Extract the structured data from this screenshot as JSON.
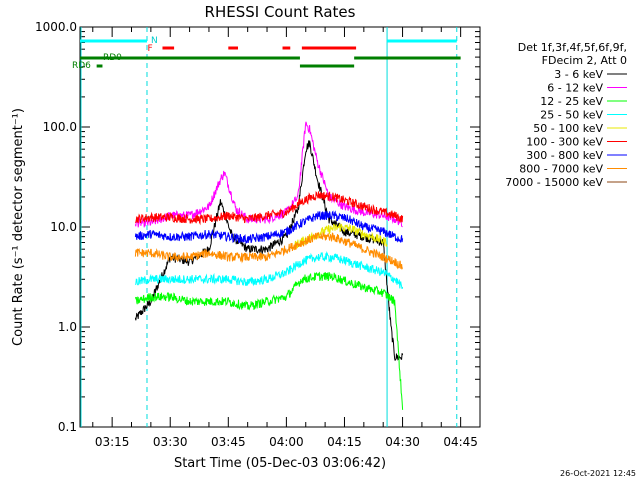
{
  "chart_data": {
    "type": "line",
    "title": "RHESSI Count Rates",
    "xlabel": "Start Time (05-Dec-03 03:06:42)",
    "ylabel": "Count Rate (s⁻¹ detector segment⁻¹)",
    "timestamp": "26-Oct-2021 12:45",
    "y_scale": "log",
    "ylim": [
      0.1,
      1000.0
    ],
    "y_ticks": [
      "0.1",
      "1.0",
      "10.0",
      "100.0",
      "1000.0"
    ],
    "x_range_minutes": [
      "03:06:42",
      "04:50:00"
    ],
    "x_ticks": [
      "03:15",
      "03:30",
      "03:45",
      "04:00",
      "04:15",
      "04:30",
      "04:45"
    ],
    "legend": {
      "placement": "right",
      "header": [
        "Det 1f,3f,4f,5f,6f,9f,",
        "FDecim 2, Att 0"
      ],
      "entries": [
        {
          "name": "3 - 6 keV",
          "color": "#000000"
        },
        {
          "name": "6 - 12 keV",
          "color": "#ff00ff"
        },
        {
          "name": "12 - 25 keV",
          "color": "#00ff00"
        },
        {
          "name": "25 - 50 keV",
          "color": "#00ffff"
        },
        {
          "name": "50 - 100 keV",
          "color": "#e8e800"
        },
        {
          "name": "100 - 300 keV",
          "color": "#ff0000"
        },
        {
          "name": "300 - 800 keV",
          "color": "#0000ff"
        },
        {
          "name": "800 - 7000 keV",
          "color": "#ff8c00"
        },
        {
          "name": "7000 - 15000 keV",
          "color": "#8b4513"
        }
      ]
    },
    "flag_labels": {
      "night": "N",
      "flare": "F",
      "rd0": "RD0",
      "rd6": "RD6"
    },
    "flags": {
      "night": [
        [
          "03:06:42",
          "03:24:00"
        ],
        [
          "04:26:00",
          "04:44:00"
        ]
      ],
      "flare": [
        [
          "03:28:00",
          "03:31:00"
        ],
        [
          "03:45:00",
          "03:47:30"
        ],
        [
          "03:59:00",
          "04:01:00"
        ],
        [
          "04:04:00",
          "04:18:00"
        ]
      ],
      "rd0": [
        [
          "03:06:42",
          "04:03:30"
        ],
        [
          "04:17:30",
          "04:45:00"
        ]
      ],
      "rd0_low": [
        [
          "04:03:30",
          "04:17:30"
        ]
      ],
      "rd6": [
        [
          "03:11:00",
          "03:12:30"
        ]
      ]
    },
    "night_boundaries": [
      "03:06:42",
      "03:24:00",
      "04:26:00",
      "04:44:00"
    ],
    "data_time_range": [
      "03:21:00",
      "04:30:00"
    ],
    "series": [
      {
        "name": "3 - 6 keV",
        "color": "#000000",
        "points": [
          [
            "03:21",
            1.2
          ],
          [
            "03:25",
            1.8
          ],
          [
            "03:30",
            5.0
          ],
          [
            "03:35",
            4.5
          ],
          [
            "03:40",
            6.0
          ],
          [
            "03:43",
            18.0
          ],
          [
            "03:46",
            8.0
          ],
          [
            "03:50",
            6.0
          ],
          [
            "03:55",
            6.0
          ],
          [
            "04:00",
            8.0
          ],
          [
            "04:03",
            15.0
          ],
          [
            "04:05",
            60.0
          ],
          [
            "04:06",
            70.0
          ],
          [
            "04:08",
            30.0
          ],
          [
            "04:11",
            12.0
          ],
          [
            "04:15",
            9.0
          ],
          [
            "04:20",
            8.0
          ],
          [
            "04:25",
            7.0
          ],
          [
            "04:27",
            1.0
          ],
          [
            "04:28",
            0.5
          ],
          [
            "04:30",
            0.5
          ]
        ]
      },
      {
        "name": "6 - 12 keV",
        "color": "#ff00ff",
        "points": [
          [
            "03:21",
            11.0
          ],
          [
            "03:25",
            11.0
          ],
          [
            "03:30",
            13.0
          ],
          [
            "03:35",
            13.0
          ],
          [
            "03:40",
            16.0
          ],
          [
            "03:43",
            30.0
          ],
          [
            "03:44",
            35.0
          ],
          [
            "03:47",
            15.0
          ],
          [
            "03:50",
            12.0
          ],
          [
            "03:55",
            12.0
          ],
          [
            "04:00",
            14.0
          ],
          [
            "04:03",
            20.0
          ],
          [
            "04:05",
            110.0
          ],
          [
            "04:06",
            95.0
          ],
          [
            "04:08",
            45.0
          ],
          [
            "04:11",
            20.0
          ],
          [
            "04:15",
            16.0
          ],
          [
            "04:20",
            14.0
          ],
          [
            "04:25",
            13.0
          ],
          [
            "04:28",
            12.0
          ],
          [
            "04:30",
            11.0
          ]
        ]
      },
      {
        "name": "100 - 300 keV",
        "color": "#ff0000",
        "points": [
          [
            "03:21",
            12.0
          ],
          [
            "03:25",
            12.5
          ],
          [
            "03:30",
            12.5
          ],
          [
            "03:35",
            12.0
          ],
          [
            "03:40",
            12.0
          ],
          [
            "03:45",
            13.0
          ],
          [
            "03:50",
            12.0
          ],
          [
            "03:55",
            13.0
          ],
          [
            "04:00",
            14.0
          ],
          [
            "04:04",
            18.0
          ],
          [
            "04:08",
            21.0
          ],
          [
            "04:12",
            20.0
          ],
          [
            "04:16",
            18.0
          ],
          [
            "04:20",
            16.0
          ],
          [
            "04:25",
            14.0
          ],
          [
            "04:28",
            13.0
          ],
          [
            "04:30",
            12.0
          ]
        ]
      },
      {
        "name": "50 - 100 keV",
        "color": "#e8e800",
        "points": [
          [
            "04:02",
            6.5
          ],
          [
            "04:05",
            7.5
          ],
          [
            "04:08",
            8.5
          ],
          [
            "04:11",
            9.5
          ],
          [
            "04:14",
            10.0
          ],
          [
            "04:17",
            9.5
          ],
          [
            "04:20",
            8.5
          ],
          [
            "04:24",
            7.5
          ],
          [
            "04:26",
            7.0
          ]
        ]
      },
      {
        "name": "300 - 800 keV",
        "color": "#0000ff",
        "points": [
          [
            "03:21",
            8.0
          ],
          [
            "03:25",
            8.5
          ],
          [
            "03:30",
            8.0
          ],
          [
            "03:35",
            8.0
          ],
          [
            "03:40",
            8.5
          ],
          [
            "03:45",
            8.0
          ],
          [
            "03:50",
            7.5
          ],
          [
            "03:55",
            8.0
          ],
          [
            "04:00",
            9.0
          ],
          [
            "04:04",
            11.0
          ],
          [
            "04:08",
            13.0
          ],
          [
            "04:12",
            13.0
          ],
          [
            "04:16",
            12.0
          ],
          [
            "04:20",
            10.0
          ],
          [
            "04:25",
            9.0
          ],
          [
            "04:28",
            8.0
          ],
          [
            "04:30",
            7.5
          ]
        ]
      },
      {
        "name": "800 - 7000 keV",
        "color": "#ff8c00",
        "points": [
          [
            "03:21",
            5.5
          ],
          [
            "03:25",
            5.5
          ],
          [
            "03:30",
            5.0
          ],
          [
            "03:35",
            5.0
          ],
          [
            "03:40",
            5.5
          ],
          [
            "03:45",
            5.0
          ],
          [
            "03:50",
            5.0
          ],
          [
            "03:55",
            5.0
          ],
          [
            "04:00",
            6.0
          ],
          [
            "04:04",
            7.0
          ],
          [
            "04:08",
            8.0
          ],
          [
            "04:12",
            8.0
          ],
          [
            "04:16",
            7.0
          ],
          [
            "04:20",
            6.0
          ],
          [
            "04:25",
            5.0
          ],
          [
            "04:28",
            4.5
          ],
          [
            "04:30",
            4.0
          ]
        ]
      },
      {
        "name": "25 - 50 keV",
        "color": "#00ffff",
        "points": [
          [
            "03:21",
            2.8
          ],
          [
            "03:25",
            3.0
          ],
          [
            "03:30",
            3.0
          ],
          [
            "03:35",
            3.0
          ],
          [
            "03:40",
            3.0
          ],
          [
            "03:45",
            3.0
          ],
          [
            "03:50",
            2.8
          ],
          [
            "03:55",
            3.0
          ],
          [
            "04:00",
            3.5
          ],
          [
            "04:04",
            4.5
          ],
          [
            "04:08",
            5.0
          ],
          [
            "04:12",
            5.0
          ],
          [
            "04:16",
            4.5
          ],
          [
            "04:20",
            4.0
          ],
          [
            "04:25",
            3.5
          ],
          [
            "04:28",
            3.0
          ],
          [
            "04:30",
            2.5
          ]
        ]
      },
      {
        "name": "12 - 25 keV",
        "color": "#00ff00",
        "points": [
          [
            "03:21",
            1.8
          ],
          [
            "03:25",
            2.0
          ],
          [
            "03:30",
            2.0
          ],
          [
            "03:35",
            1.8
          ],
          [
            "03:40",
            1.8
          ],
          [
            "03:45",
            1.8
          ],
          [
            "03:50",
            1.6
          ],
          [
            "03:55",
            1.8
          ],
          [
            "04:00",
            2.0
          ],
          [
            "04:04",
            3.0
          ],
          [
            "04:08",
            3.2
          ],
          [
            "04:12",
            3.2
          ],
          [
            "04:16",
            2.8
          ],
          [
            "04:20",
            2.5
          ],
          [
            "04:25",
            2.2
          ],
          [
            "04:28",
            1.8
          ],
          [
            "04:30",
            0.15
          ]
        ]
      }
    ]
  }
}
